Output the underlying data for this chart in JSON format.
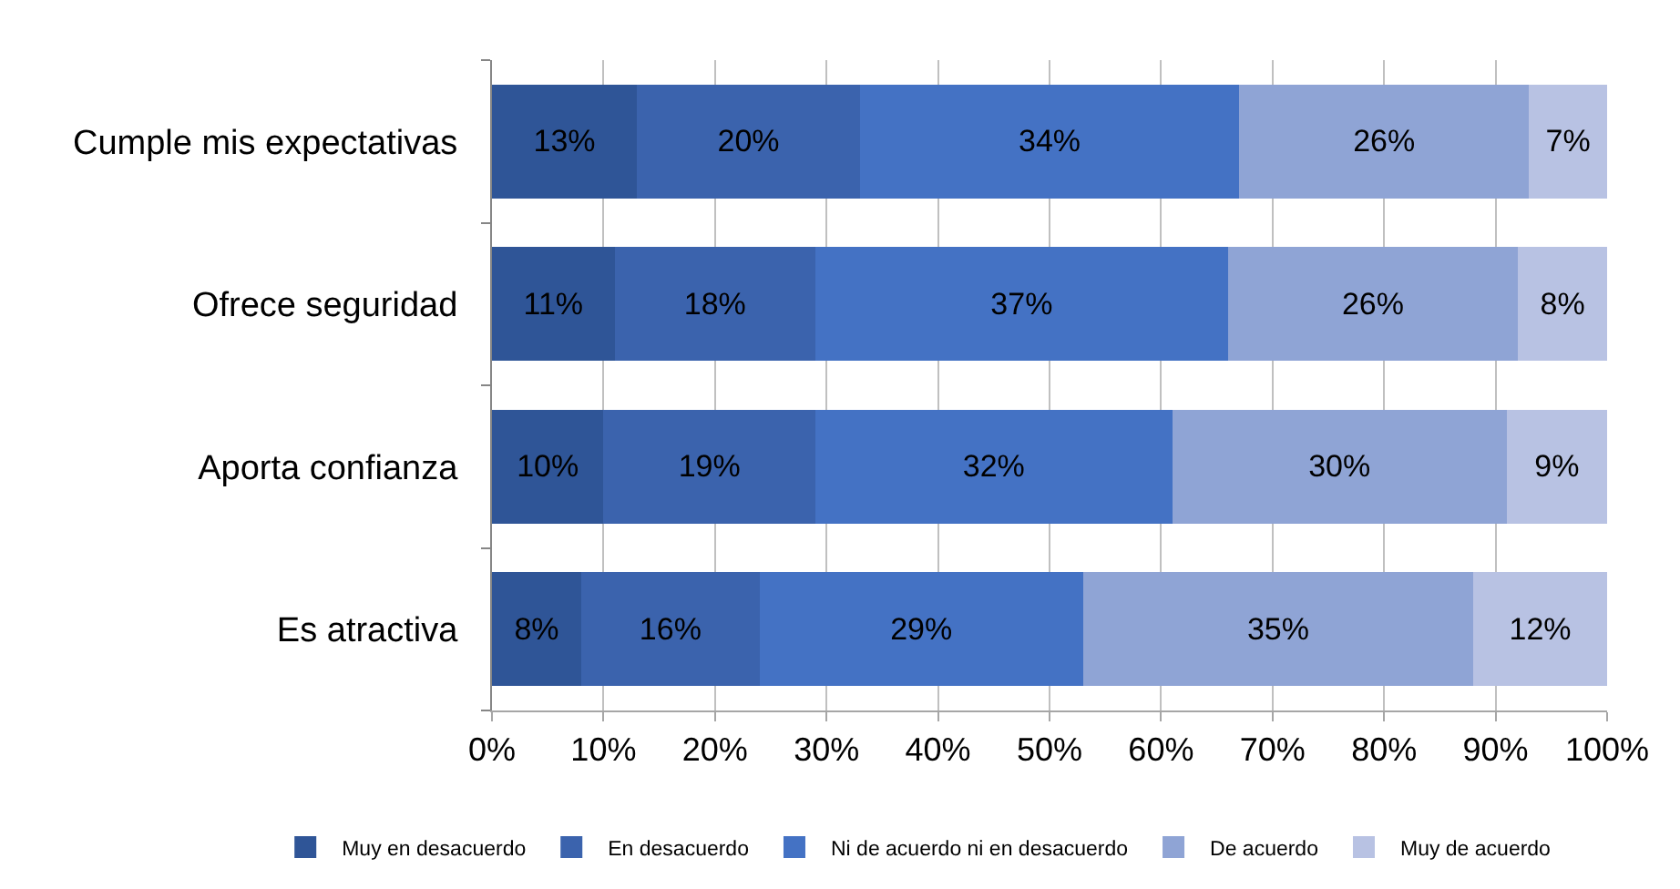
{
  "chart_data": {
    "type": "bar",
    "orientation": "horizontal",
    "stacked": true,
    "categories": [
      "Cumple mis expectativas",
      "Ofrece seguridad",
      "Aporta confianza",
      "Es atractiva"
    ],
    "series": [
      {
        "name": "Muy en desacuerdo",
        "color": "#2f5597",
        "values": [
          13,
          11,
          10,
          8
        ],
        "value_labels": [
          "13%",
          "11%",
          "10%",
          "8%"
        ]
      },
      {
        "name": "En desacuerdo",
        "color": "#3b63ad",
        "values": [
          20,
          18,
          19,
          16
        ],
        "value_labels": [
          "20%",
          "18%",
          "19%",
          "16%"
        ]
      },
      {
        "name": "Ni de acuerdo ni en desacuerdo",
        "color": "#4472c4",
        "values": [
          34,
          37,
          32,
          29
        ],
        "value_labels": [
          "34%",
          "37%",
          "32%",
          "29%"
        ]
      },
      {
        "name": "De acuerdo",
        "color": "#8fa4d5",
        "values": [
          26,
          26,
          30,
          35
        ],
        "value_labels": [
          "26%",
          "26%",
          "30%",
          "35%"
        ]
      },
      {
        "name": "Muy de acuerdo",
        "color": "#b8c2e3",
        "values": [
          7,
          8,
          9,
          12
        ],
        "value_labels": [
          "7%",
          "8%",
          "9%",
          "12%"
        ]
      }
    ],
    "xlim": [
      0,
      100
    ],
    "xticks": [
      {
        "value": 0,
        "label": "0%"
      },
      {
        "value": 10,
        "label": "10%"
      },
      {
        "value": 20,
        "label": "20%"
      },
      {
        "value": 30,
        "label": "30%"
      },
      {
        "value": 40,
        "label": "40%"
      },
      {
        "value": 50,
        "label": "50%"
      },
      {
        "value": 60,
        "label": "60%"
      },
      {
        "value": 70,
        "label": "70%"
      },
      {
        "value": 80,
        "label": "80%"
      },
      {
        "value": 90,
        "label": "90%"
      },
      {
        "value": 100,
        "label": "100%"
      }
    ],
    "grid": "x",
    "legend": "bottom"
  }
}
